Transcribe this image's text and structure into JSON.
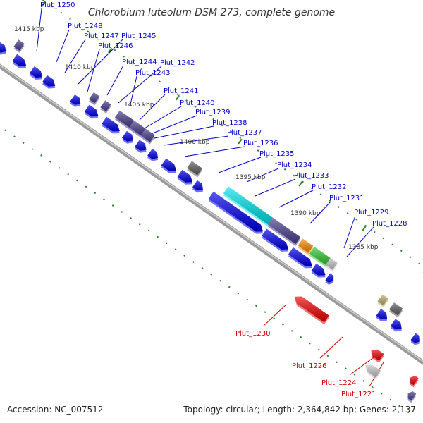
{
  "title": "Chlorobium luteolum DSM 273, complete genome",
  "accession": "Accession: NC_007512",
  "topology": "Topology: circular; Length: 2,364,842 bp; Genes: 2,137",
  "colors": {
    "cds": "#0000ee",
    "label_forward": "#0000cc",
    "label_reverse": "#cc0000",
    "backbone": "#808080",
    "tick": "#2e7d2e",
    "cyan": "#00e5ee",
    "slate": "#4a3f8f",
    "grey": "#606060",
    "orange": "#ff8c00",
    "green": "#33cc33",
    "light_grey": "#c8c8c8",
    "khaki": "#bfb070",
    "red": "#ee0000",
    "lime": "#aaff33"
  },
  "ticks": [
    "1415 kbp",
    "1410 kbp",
    "1405 kbp",
    "1400 kbp",
    "1395 kbp",
    "1390 kbp",
    "1385 kbp"
  ],
  "forward_labels": [
    "Plut_1250",
    "Plut_1248",
    "Plut_1247",
    "Plut_1245",
    "Plut_1246",
    "Plut_1244",
    "Plut_1242",
    "Plut_1243",
    "Plut_1241",
    "Plut_1240",
    "Plut_1239",
    "Plut_1238",
    "Plut_1237",
    "Plut_1236",
    "Plut_1235",
    "Plut_1234",
    "Plut_1233",
    "Plut_1232",
    "Plut_1231",
    "Plut_1229",
    "Plut_1228"
  ],
  "reverse_labels": [
    "Plut_1230",
    "Plut_1226",
    "Plut_1224",
    "Plut_1221"
  ]
}
